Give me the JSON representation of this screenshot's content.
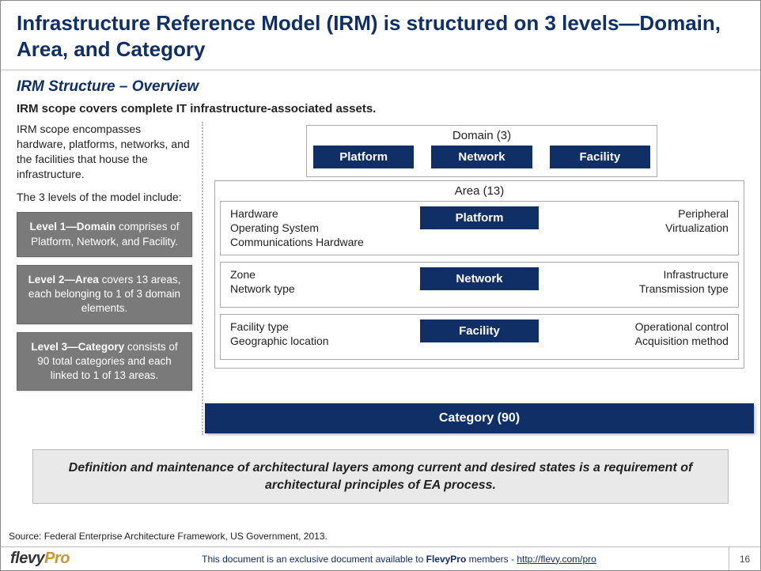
{
  "title": "Infrastructure Reference Model (IRM) is structured on 3 levels—Domain, Area, and Category",
  "subtitle": "IRM Structure – Overview",
  "scope_line": "IRM scope covers complete IT infrastructure-associated assets.",
  "intro_p1": "IRM scope encompasses hardware, platforms, networks, and the facilities that house the infrastructure.",
  "intro_p2": "The 3 levels of the model include:",
  "levels": {
    "l1_title": "Level 1—Domain",
    "l1_body": " comprises of Platform, Network, and Facility.",
    "l2_title": "Level 2—Area",
    "l2_body": " covers 13 areas, each belonging to 1 of 3 domain elements.",
    "l3_title": "Level 3—Category",
    "l3_body": " consists of 90 total categories and each linked to 1 of 13 areas."
  },
  "diagram": {
    "domain_label": "Domain (3)",
    "domain_items": [
      "Platform",
      "Network",
      "Facility"
    ],
    "area_label": "Area (13)",
    "rows": [
      {
        "left": [
          "Hardware",
          "Operating System",
          "Communications Hardware"
        ],
        "center": "Platform",
        "right": [
          "Peripheral",
          "Virtualization"
        ]
      },
      {
        "left": [
          "Zone",
          "Network type"
        ],
        "center": "Network",
        "right": [
          "Infrastructure",
          "Transmission type"
        ]
      },
      {
        "left": [
          "Facility type",
          "Geographic location"
        ],
        "center": "Facility",
        "right": [
          "Operational control",
          "Acquisition method"
        ]
      }
    ],
    "category_label": "Category (90)"
  },
  "callout": "Definition and maintenance of architectural layers among current and desired states is a requirement of architectural principles of EA process.",
  "source": "Source: Federal Enterprise Architecture Framework, US Government, 2013.",
  "footer": {
    "logo_main": "flevy",
    "logo_suffix": "Pro",
    "text_prefix": "This document is an exclusive document available to ",
    "text_bold": "FlevyPro",
    "text_suffix": " members - ",
    "link": "http://flevy.com/pro",
    "page": "16"
  },
  "colors": {
    "navy": "#0f2f66",
    "grey_box": "#7a7a7a",
    "callout_bg": "#e9e9e9",
    "gold": "#c59a2a"
  }
}
